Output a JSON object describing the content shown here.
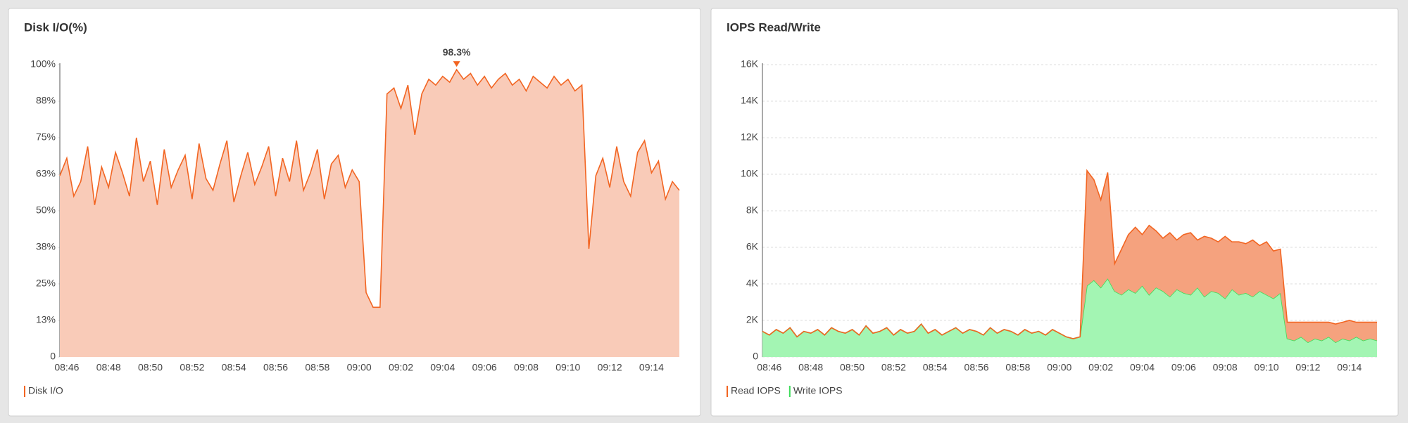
{
  "chart_data": [
    {
      "type": "area",
      "title": "Disk I/O(%)",
      "grid": false,
      "categories": [
        null,
        "08:46",
        null,
        null,
        null,
        null,
        null,
        "08:48",
        null,
        null,
        null,
        null,
        null,
        "08:50",
        null,
        null,
        null,
        null,
        null,
        "08:52",
        null,
        null,
        null,
        null,
        null,
        "08:54",
        null,
        null,
        null,
        null,
        null,
        "08:56",
        null,
        null,
        null,
        null,
        null,
        "08:58",
        null,
        null,
        null,
        null,
        null,
        "09:00",
        null,
        null,
        null,
        null,
        null,
        "09:02",
        null,
        null,
        null,
        null,
        null,
        "09:04",
        null,
        null,
        null,
        null,
        null,
        "09:06",
        null,
        null,
        null,
        null,
        null,
        "09:08",
        null,
        null,
        null,
        null,
        null,
        "09:10",
        null,
        null,
        null,
        null,
        null,
        "09:12",
        null,
        null,
        null,
        null,
        null,
        "09:14",
        null,
        null,
        null,
        null
      ],
      "ylim": [
        0,
        100
      ],
      "yticks": [
        0,
        {
          "value": 12.5,
          "label": "13%"
        },
        {
          "value": 25,
          "label": "25%"
        },
        {
          "value": 37.5,
          "label": "38%"
        },
        {
          "value": 50,
          "label": "50%"
        },
        {
          "value": 62.5,
          "label": "63%"
        },
        {
          "value": 75,
          "label": "75%"
        },
        {
          "value": 87.5,
          "label": "88%"
        },
        {
          "value": 100,
          "label": "100%"
        }
      ],
      "series": [
        {
          "name": "Disk I/O",
          "color": "#f26522",
          "fill": "#f9cbb8",
          "values": [
            62,
            68,
            55,
            60,
            72,
            52,
            65,
            58,
            70,
            63,
            55,
            75,
            60,
            67,
            52,
            71,
            58,
            64,
            69,
            54,
            73,
            61,
            57,
            66,
            74,
            53,
            62,
            70,
            59,
            65,
            72,
            55,
            68,
            60,
            74,
            57,
            63,
            71,
            54,
            66,
            69,
            58,
            64,
            60,
            22,
            17,
            17,
            90,
            92,
            85,
            93,
            76,
            90,
            95,
            93,
            96,
            94,
            98.3,
            95,
            97,
            93,
            96,
            92,
            95,
            97,
            93,
            95,
            91,
            96,
            94,
            92,
            96,
            93,
            95,
            91,
            93,
            37,
            62,
            68,
            58,
            72,
            60,
            55,
            70,
            74,
            63,
            67,
            54,
            60,
            57
          ],
          "value_labels": [
            null,
            null,
            null,
            null,
            null,
            null,
            null,
            null,
            null,
            null,
            null,
            null,
            null,
            null,
            null,
            null,
            null,
            null,
            null,
            null,
            null,
            null,
            null,
            null,
            null,
            null,
            null,
            null,
            null,
            null,
            null,
            null,
            null,
            null,
            null,
            null,
            null,
            null,
            null,
            null,
            null,
            null,
            null,
            null,
            null,
            null,
            null,
            null,
            null,
            null,
            null,
            null,
            null,
            null,
            null,
            null,
            null,
            "98.3%",
            null,
            null,
            null,
            null,
            null,
            null,
            null,
            null,
            null,
            null,
            null,
            null,
            null,
            null,
            null,
            null,
            null,
            null,
            null,
            null,
            null,
            null,
            null,
            null,
            null,
            null,
            null,
            null,
            null,
            null,
            null,
            null
          ]
        }
      ]
    },
    {
      "type": "area",
      "title": "IOPS Read/Write",
      "grid": true,
      "stacked": true,
      "categories": [
        null,
        "08:46",
        null,
        null,
        null,
        null,
        null,
        "08:48",
        null,
        null,
        null,
        null,
        null,
        "08:50",
        null,
        null,
        null,
        null,
        null,
        "08:52",
        null,
        null,
        null,
        null,
        null,
        "08:54",
        null,
        null,
        null,
        null,
        null,
        "08:56",
        null,
        null,
        null,
        null,
        null,
        "08:58",
        null,
        null,
        null,
        null,
        null,
        "09:00",
        null,
        null,
        null,
        null,
        null,
        "09:02",
        null,
        null,
        null,
        null,
        null,
        "09:04",
        null,
        null,
        null,
        null,
        null,
        "09:06",
        null,
        null,
        null,
        null,
        null,
        "09:08",
        null,
        null,
        null,
        null,
        null,
        "09:10",
        null,
        null,
        null,
        null,
        null,
        "09:12",
        null,
        null,
        null,
        null,
        null,
        "09:14",
        null,
        null,
        null,
        null
      ],
      "ylim": [
        0,
        16000
      ],
      "yticks": [
        0,
        {
          "value": 2000,
          "label": "2K"
        },
        {
          "value": 4000,
          "label": "4K"
        },
        {
          "value": 6000,
          "label": "6K"
        },
        {
          "value": 8000,
          "label": "8K"
        },
        {
          "value": 10000,
          "label": "10K"
        },
        {
          "value": 12000,
          "label": "12K"
        },
        {
          "value": 14000,
          "label": "14K"
        },
        {
          "value": 16000,
          "label": "16K"
        }
      ],
      "series": [
        {
          "name": "Read IOPS",
          "color": "#f26522",
          "fill": "#f5a27e",
          "values": [
            0,
            0,
            0,
            0,
            0,
            0,
            0,
            0,
            0,
            0,
            0,
            0,
            0,
            0,
            0,
            0,
            0,
            0,
            0,
            0,
            0,
            0,
            0,
            0,
            0,
            0,
            0,
            0,
            0,
            0,
            0,
            0,
            0,
            0,
            0,
            0,
            0,
            0,
            0,
            0,
            0,
            0,
            0,
            0,
            0,
            0,
            0,
            6300,
            5500,
            4800,
            5800,
            1500,
            2500,
            3000,
            3600,
            2800,
            3800,
            3100,
            2900,
            3500,
            2700,
            3200,
            3400,
            2600,
            3300,
            2900,
            2800,
            3400,
            2600,
            2900,
            2700,
            3100,
            2500,
            2900,
            2600,
            2400,
            900,
            1000,
            800,
            1100,
            900,
            1000,
            800,
            1000,
            900,
            1100,
            800,
            1000,
            900,
            1000
          ]
        },
        {
          "name": "Write IOPS",
          "color": "#3ddc5a",
          "fill": "#a3f5b3",
          "values": [
            1400,
            1200,
            1500,
            1300,
            1600,
            1100,
            1400,
            1300,
            1500,
            1200,
            1600,
            1400,
            1300,
            1500,
            1200,
            1700,
            1300,
            1400,
            1600,
            1200,
            1500,
            1300,
            1400,
            1800,
            1300,
            1500,
            1200,
            1400,
            1600,
            1300,
            1500,
            1400,
            1200,
            1600,
            1300,
            1500,
            1400,
            1200,
            1500,
            1300,
            1400,
            1200,
            1500,
            1300,
            1100,
            1000,
            1100,
            3900,
            4200,
            3800,
            4300,
            3600,
            3400,
            3700,
            3500,
            3900,
            3400,
            3800,
            3600,
            3300,
            3700,
            3500,
            3400,
            3800,
            3300,
            3600,
            3500,
            3200,
            3700,
            3400,
            3500,
            3300,
            3600,
            3400,
            3200,
            3500,
            1000,
            900,
            1100,
            800,
            1000,
            900,
            1100,
            800,
            1000,
            900,
            1100,
            900,
            1000,
            900
          ]
        }
      ]
    }
  ]
}
